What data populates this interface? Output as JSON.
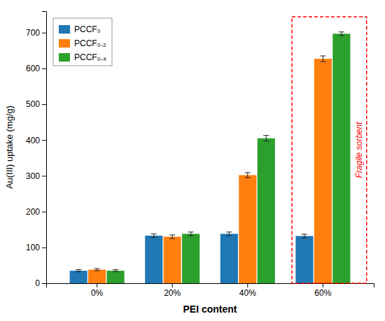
{
  "chart_data": {
    "type": "bar",
    "categories": [
      "0%",
      "20%",
      "40%",
      "60%"
    ],
    "series": [
      {
        "name": "PCCF₀",
        "values": [
          35,
          133,
          138,
          132
        ],
        "errors": [
          3,
          5,
          5,
          5
        ]
      },
      {
        "name": "PCCF₀.₂",
        "values": [
          38,
          130,
          302,
          627
        ],
        "errors": [
          3,
          5,
          7,
          8
        ]
      },
      {
        "name": "PCCF₀.₄",
        "values": [
          35,
          138,
          405,
          697
        ],
        "errors": [
          3,
          5,
          8,
          5
        ]
      }
    ],
    "x_label": "PEI content",
    "y_label": "Au(III) uptake (mg/g)",
    "ylim": [
      0,
      760
    ],
    "yticks": [
      0,
      100,
      200,
      300,
      400,
      500,
      600,
      700
    ],
    "annotations": [
      "Fragile sorbent"
    ],
    "legend": "top-left",
    "grid": false
  }
}
